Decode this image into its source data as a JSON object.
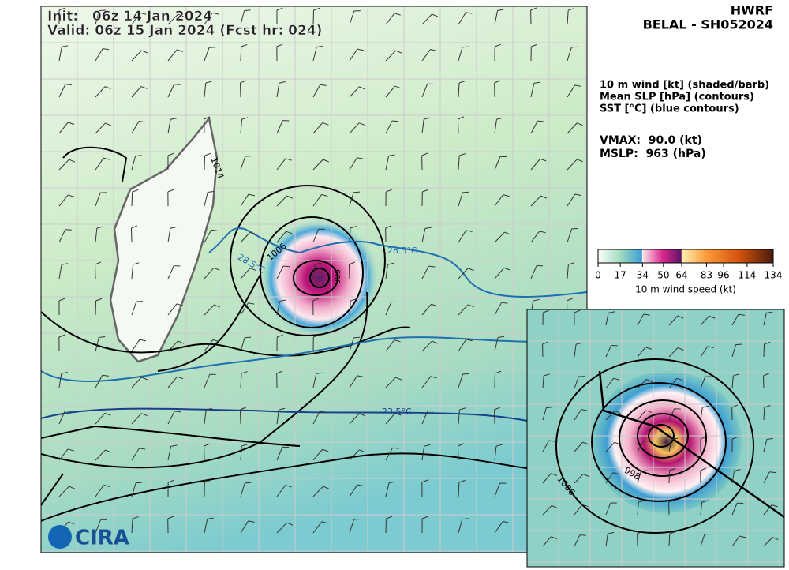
{
  "header": {
    "init": "Init:   06z 14 Jan 2024",
    "valid": "Valid: 06z 15 Jan 2024 (Fcst hr: 024)"
  },
  "title": {
    "model": "HWRF",
    "storm": "BELAL - SH052024"
  },
  "legend": [
    "10 m wind [kt] (shaded/barb)",
    "Mean SLP [hPa] (contours)",
    "SST [°C] (blue contours)"
  ],
  "stats": [
    "VMAX:  90.0 (kt)",
    "MSLP:  963 (hPa)"
  ],
  "colorbar": {
    "label": "10 m wind speed (kt)",
    "lim": [
      0,
      134
    ],
    "ticks": [
      0,
      17,
      34,
      50,
      64,
      83,
      96,
      114,
      134
    ]
  },
  "contour_labels": {
    "main": [
      "1014",
      "1006",
      "28.5°C",
      "28.5°C",
      "23.5°C",
      "985"
    ],
    "inset": [
      "1006",
      "998"
    ]
  },
  "logo": "CIRA"
}
